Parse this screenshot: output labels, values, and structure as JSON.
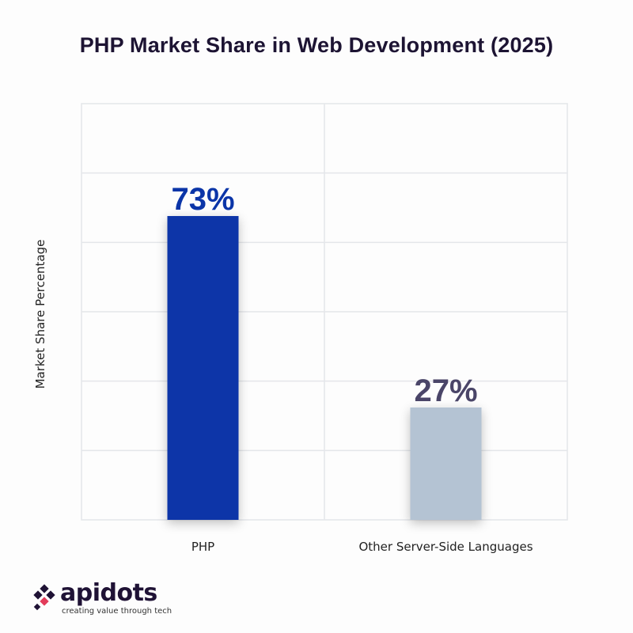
{
  "chart_data": {
    "type": "bar",
    "title": "PHP Market Share in Web Development (2025)",
    "xlabel": "",
    "ylabel": "Market Share Percentage",
    "categories": [
      "PHP",
      "Other Server-Side Languages"
    ],
    "values": [
      73,
      27
    ],
    "value_labels": [
      "73%",
      "27%"
    ],
    "ylim": [
      0,
      100
    ],
    "grid": true,
    "colors": [
      "#0b35a8",
      "#b4c3d3"
    ],
    "label_colors": [
      "#0b35a8",
      "#4a4568"
    ]
  },
  "branding": {
    "name": "apidots",
    "tagline": "creating value through tech",
    "colors": {
      "primary": "#1f1235",
      "accent": "#e23b5a"
    }
  }
}
